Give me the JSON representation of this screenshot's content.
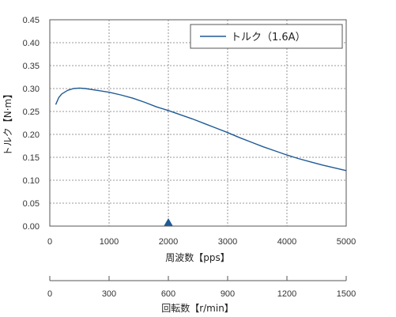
{
  "chart_data": {
    "type": "line",
    "xlabel": "周波数【pps】",
    "ylabel": "トルク【N·m】",
    "xlim": [
      0,
      5000
    ],
    "ylim": [
      0,
      0.45
    ],
    "x_ticks": [
      "0",
      "1000",
      "2000",
      "3000",
      "4000",
      "5000"
    ],
    "y_ticks": [
      "0.00",
      "0.05",
      "0.10",
      "0.15",
      "0.20",
      "0.25",
      "0.30",
      "0.35",
      "0.40",
      "0.45"
    ],
    "grid": true,
    "legend_position": "top-right",
    "series": [
      {
        "name": "トルク（1.6A）",
        "color": "#1f5a96",
        "x": [
          100,
          150,
          200,
          300,
          400,
          500,
          600,
          700,
          800,
          1000,
          1200,
          1400,
          1600,
          1800,
          2000,
          2200,
          2400,
          2600,
          2800,
          3000,
          3200,
          3400,
          3600,
          3800,
          4000,
          4200,
          4400,
          4600,
          4800,
          5000
        ],
        "y": [
          0.265,
          0.28,
          0.288,
          0.296,
          0.3,
          0.301,
          0.3,
          0.298,
          0.296,
          0.292,
          0.286,
          0.279,
          0.27,
          0.26,
          0.252,
          0.243,
          0.234,
          0.224,
          0.214,
          0.204,
          0.193,
          0.183,
          0.173,
          0.164,
          0.155,
          0.147,
          0.14,
          0.133,
          0.127,
          0.121
        ]
      }
    ],
    "marker": {
      "x": 2000,
      "symbol": "triangle-up",
      "color": "#1f5a96"
    },
    "secondary_axis": {
      "label": "回転数【r/min】",
      "min": 0,
      "max": 1500,
      "ticks": [
        "0",
        "300",
        "600",
        "900",
        "1200",
        "1500"
      ]
    }
  }
}
